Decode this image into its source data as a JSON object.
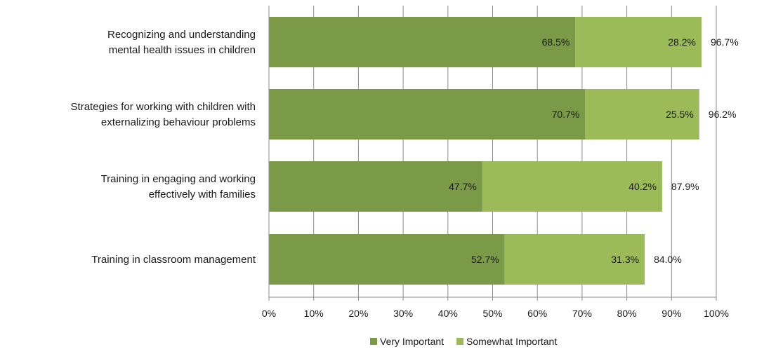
{
  "chart_data": {
    "type": "bar",
    "orientation": "horizontal",
    "stacked": true,
    "categories": [
      [
        "Recognizing and understanding",
        "mental health issues in children"
      ],
      [
        "Strategies for working with children with",
        "externalizing behaviour problems"
      ],
      [
        "Training in engaging and working",
        "effectively with families"
      ],
      [
        "Training in classroom management"
      ]
    ],
    "series": [
      {
        "name": "Very Important",
        "values": [
          68.5,
          70.7,
          47.7,
          52.7
        ],
        "labels": [
          "68.5%",
          "70.7%",
          "47.7%",
          "52.7%"
        ],
        "color": "#7a9a48"
      },
      {
        "name": "Somewhat Important",
        "values": [
          28.2,
          25.5,
          40.2,
          31.3
        ],
        "labels": [
          "28.2%",
          "25.5%",
          "40.2%",
          "31.3%"
        ],
        "color": "#9bbb59"
      }
    ],
    "totals": [
      "96.7%",
      "96.2%",
      "87.9%",
      "84.0%"
    ],
    "xlim": [
      0,
      100
    ],
    "xticks": [
      "0%",
      "10%",
      "20%",
      "30%",
      "40%",
      "50%",
      "60%",
      "70%",
      "80%",
      "90%",
      "100%"
    ],
    "grid": true,
    "legend_position": "bottom",
    "title": "",
    "xlabel": "",
    "ylabel": ""
  }
}
